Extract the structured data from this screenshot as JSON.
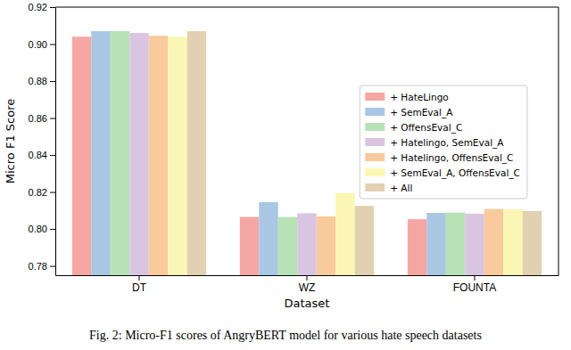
{
  "chart_data": {
    "type": "bar",
    "title": "Fig. 2: Micro-F1 scores of AngryBERT model for various hate speech datasets",
    "x_label": "Dataset",
    "y_label": "Micro F1 Score",
    "categories": [
      "DT",
      "WZ",
      "FOUNTA"
    ],
    "series": [
      {
        "name": "+ HateLingo",
        "color": "#f4a7a3",
        "values": [
          0.904,
          0.8065,
          0.8053
        ]
      },
      {
        "name": "+ SemEval_A",
        "color": "#a9c7e3",
        "values": [
          0.907,
          0.8145,
          0.8087
        ]
      },
      {
        "name": "+ OffensEval_C",
        "color": "#b7e2b6",
        "values": [
          0.907,
          0.8065,
          0.8089
        ]
      },
      {
        "name": "+ Hatelingo, SemEval_A",
        "color": "#d9c5e1",
        "values": [
          0.906,
          0.8085,
          0.8083
        ]
      },
      {
        "name": "+ Hatelingo, OffensEval_C",
        "color": "#f9ca9c",
        "values": [
          0.9045,
          0.8068,
          0.8108
        ]
      },
      {
        "name": "+ SemEval_A, OffensEval_C",
        "color": "#fcf6b4",
        "values": [
          0.904,
          0.8195,
          0.8107
        ]
      },
      {
        "name": "+ All",
        "color": "#e1d1b2",
        "values": [
          0.907,
          0.8125,
          0.8097
        ]
      }
    ],
    "ylim": [
      0.775,
      0.92
    ],
    "yticks": [
      0.78,
      {
        "value": 0.8,
        "label": "0.80"
      },
      0.82,
      0.84,
      0.86,
      0.88,
      {
        "value": 0.9,
        "label": "0.90"
      },
      0.92
    ],
    "legend": "right",
    "grid": false
  }
}
